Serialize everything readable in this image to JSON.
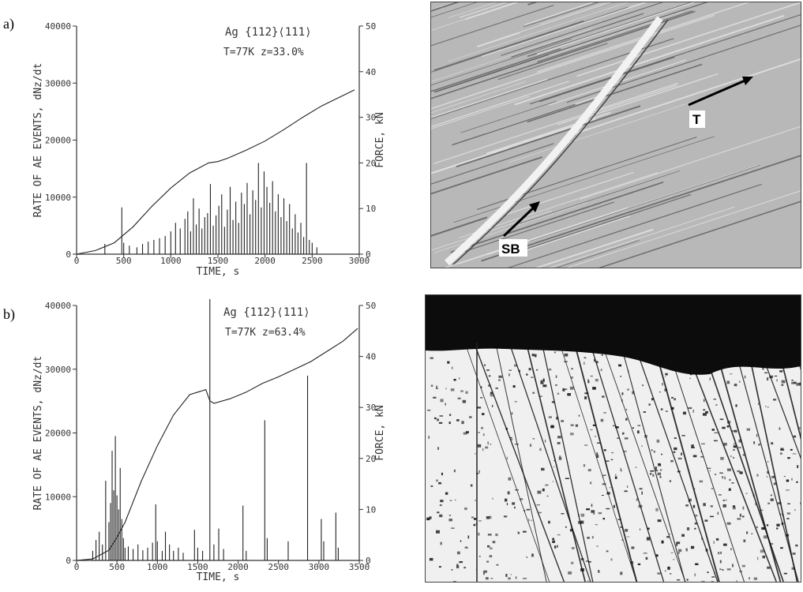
{
  "panels": [
    {
      "label": "a)"
    },
    {
      "label": "b)"
    }
  ],
  "chart_data": [
    {
      "type": "bar",
      "title": "",
      "annotation_line1": "Ag {112}⟨111⟩",
      "annotation_line2": "T=77K   z=33.0%",
      "xlabel": "TIME, s",
      "ylabel": "RATE OF AE EVENTS, dNz/dt",
      "ylabel_right": "FORCE, kN",
      "xlim": [
        0,
        3000
      ],
      "ylim": [
        0,
        40000
      ],
      "ylim_right": [
        0,
        50
      ],
      "xticks": [
        "0",
        "500",
        "1000",
        "1500",
        "2000",
        "2500",
        "3000"
      ],
      "yticks": [
        "0",
        "10000",
        "20000",
        "30000",
        "40000"
      ],
      "yticks_right": [
        "0",
        "10",
        "20",
        "30",
        "40",
        "50"
      ],
      "series": [
        {
          "kind": "spikes",
          "x": [
            300,
            480,
            500,
            560,
            640,
            700,
            760,
            820,
            880,
            940,
            1000,
            1050,
            1100,
            1150,
            1180,
            1210,
            1240,
            1270,
            1300,
            1330,
            1360,
            1390,
            1420,
            1450,
            1480,
            1510,
            1540,
            1570,
            1600,
            1630,
            1660,
            1690,
            1720,
            1750,
            1780,
            1810,
            1840,
            1870,
            1900,
            1930,
            1960,
            1990,
            2020,
            2050,
            2080,
            2110,
            2140,
            2170,
            2200,
            2230,
            2260,
            2290,
            2320,
            2350,
            2380,
            2410,
            2440,
            2470,
            2500,
            2550
          ],
          "values": [
            1800,
            8200,
            2000,
            1500,
            1200,
            1800,
            2200,
            2500,
            2800,
            3200,
            4000,
            5500,
            4500,
            6200,
            7500,
            4000,
            9800,
            5200,
            8000,
            4500,
            6500,
            7200,
            12300,
            5000,
            6800,
            8500,
            10500,
            4800,
            7800,
            11800,
            6000,
            9200,
            5500,
            10800,
            8800,
            12500,
            7000,
            11200,
            9500,
            16000,
            8200,
            14500,
            11800,
            9000,
            12800,
            7500,
            10500,
            6500,
            9800,
            5800,
            8800,
            4500,
            7000,
            3800,
            5500,
            3000,
            16000,
            2500,
            2000,
            1200
          ]
        },
        {
          "kind": "line",
          "name": "FORCE",
          "x": [
            0,
            200,
            400,
            600,
            800,
            1000,
            1200,
            1400,
            1500,
            1600,
            1800,
            2000,
            2200,
            2400,
            2600,
            2800,
            2950
          ],
          "values": [
            0,
            0.8,
            2.5,
            6,
            10.5,
            14.5,
            17.8,
            20,
            20.3,
            21,
            22.8,
            24.8,
            27.3,
            30,
            32.5,
            34.5,
            36
          ]
        }
      ]
    },
    {
      "type": "bar",
      "title": "",
      "annotation_line1": "Ag {112}⟨111⟩",
      "annotation_line2": "T=77K   z=63.4%",
      "xlabel": "TIME, s",
      "ylabel": "RATE OF AE EVENTS, dNz/dt",
      "ylabel_right": "FORCE, kN",
      "xlim": [
        0,
        3500
      ],
      "ylim": [
        0,
        40000
      ],
      "ylim_right": [
        0,
        50
      ],
      "xticks": [
        "0",
        "500",
        "1000",
        "1500",
        "2000",
        "2500",
        "3000",
        "3500"
      ],
      "yticks": [
        "0",
        "10000",
        "20000",
        "30000",
        "40000"
      ],
      "yticks_right": [
        "0",
        "10",
        "20",
        "30",
        "40",
        "50"
      ],
      "series": [
        {
          "kind": "spikes",
          "x": [
            200,
            240,
            280,
            320,
            360,
            400,
            420,
            440,
            460,
            480,
            500,
            520,
            540,
            560,
            580,
            600,
            640,
            700,
            760,
            820,
            880,
            940,
            980,
            1000,
            1060,
            1100,
            1150,
            1200,
            1260,
            1320,
            1460,
            1500,
            1560,
            1650,
            1700,
            1760,
            1820,
            2060,
            2100,
            2330,
            2360,
            2620,
            2860,
            3030,
            3060,
            3210,
            3240
          ],
          "values": [
            1500,
            3200,
            4500,
            2500,
            12500,
            6000,
            9000,
            17200,
            11000,
            19500,
            10200,
            8000,
            14500,
            6500,
            3500,
            2000,
            2200,
            1800,
            2500,
            1600,
            2000,
            2800,
            8800,
            3000,
            1500,
            4500,
            2500,
            1500,
            2000,
            1200,
            4800,
            2000,
            1500,
            41000,
            2500,
            5000,
            1800,
            8600,
            1500,
            22000,
            3500,
            3000,
            29000,
            6500,
            3000,
            7500,
            2000
          ]
        },
        {
          "kind": "line",
          "name": "FORCE",
          "x": [
            0,
            200,
            400,
            500,
            600,
            800,
            1000,
            1200,
            1400,
            1600,
            1650,
            1700,
            1900,
            2100,
            2300,
            2500,
            2700,
            2900,
            3100,
            3300,
            3480
          ],
          "values": [
            0,
            0.3,
            2,
            4.5,
            7.5,
            15.5,
            22.5,
            28.5,
            32.5,
            33.5,
            31.3,
            30.8,
            31.7,
            33,
            34.7,
            36,
            37.5,
            39,
            41,
            43,
            45.5
          ]
        }
      ]
    }
  ],
  "micrographs": [
    {
      "tone": "#b8b8b8",
      "labels": [
        {
          "text": "T"
        },
        {
          "text": "SB"
        }
      ]
    },
    {
      "tone": "#f0f0f0",
      "labels": []
    }
  ]
}
